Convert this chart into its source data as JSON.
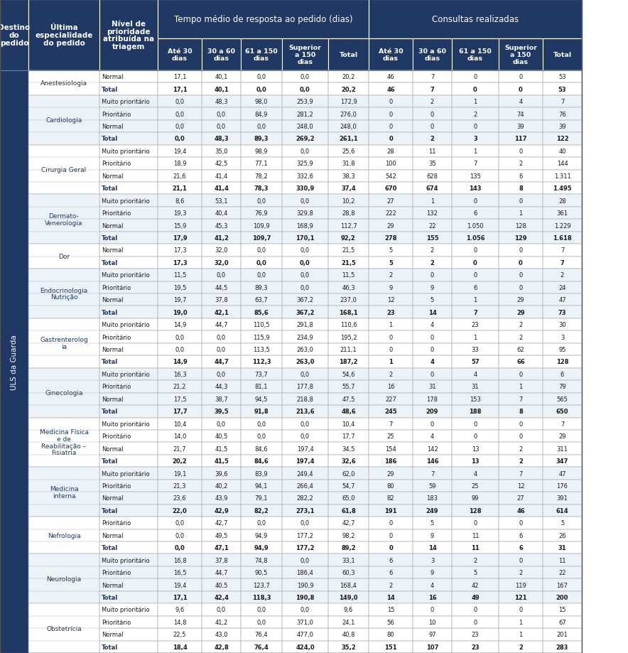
{
  "dark_blue": "#1F3864",
  "white": "#FFFFFF",
  "light_blue": "#D6E4F0",
  "mid_blue": "#2E5496",
  "col1_header": "Destino\ndo\npedido",
  "col2_header": "Última\nespecialidade\ndo pedido",
  "col3_header": "Nível de\nprioridade\natribuída na\ntriagem",
  "group1_header": "Tempo médio de resposta ao pedido (dias)",
  "group2_header": "Consultas realizadas",
  "sub_headers": [
    "Até 30\ndias",
    "30 a 60\ndias",
    "61 a 150\ndias",
    "Superior\na 150\ndias",
    "Total",
    "Até 30\ndias",
    "30 a 60\ndias",
    "61 a 150\ndias",
    "Superior\na 150\ndias",
    "Total"
  ],
  "entity": "ULS da Guarda",
  "specialty_groups": [
    {
      "name": "Anestesiologia",
      "rows": [
        0,
        1
      ]
    },
    {
      "name": "Cardiologia",
      "rows": [
        2,
        3,
        4,
        5
      ]
    },
    {
      "name": "Cirurgia Geral",
      "rows": [
        6,
        7,
        8,
        9
      ]
    },
    {
      "name": "Dermato-\nVenerologia",
      "rows": [
        10,
        11,
        12,
        13
      ]
    },
    {
      "name": "Dor",
      "rows": [
        14,
        15
      ]
    },
    {
      "name": "Endocrinologia\nNutrição",
      "rows": [
        16,
        17,
        18,
        19
      ]
    },
    {
      "name": "Gastrenterolog\nia",
      "rows": [
        20,
        21,
        22,
        23
      ]
    },
    {
      "name": "Ginecologia",
      "rows": [
        24,
        25,
        26,
        27
      ]
    },
    {
      "name": "Medicina Física\ne de\nReabilitação –\nFisiatria",
      "rows": [
        28,
        29,
        30,
        31
      ]
    },
    {
      "name": "Medicina\ninterna",
      "rows": [
        32,
        33,
        34,
        35
      ]
    },
    {
      "name": "Nefrologia",
      "rows": [
        36,
        37,
        38
      ]
    },
    {
      "name": "Neurologia",
      "rows": [
        39,
        40,
        41,
        42
      ]
    },
    {
      "name": "Obstetrícia",
      "rows": [
        43,
        44,
        45,
        46
      ]
    }
  ],
  "specialty_colors": {
    "Anestesiologia": "#FFFFFF",
    "Cardiologia": "#EBF3F9",
    "Cirurgia Geral": "#FFFFFF",
    "Dermato-\nVenerologia": "#EBF3F9",
    "Dor": "#FFFFFF",
    "Endocrinologia\nNutrição": "#EBF3F9",
    "Gastrenterolog\nia": "#FFFFFF",
    "Ginecologia": "#EBF3F9",
    "Medicina Física\ne de\nReabilitação –\nFisiatria": "#FFFFFF",
    "Medicina\ninterna": "#EBF3F9",
    "Nefrologia": "#FFFFFF",
    "Neurologia": "#EBF3F9",
    "Obstetrícia": "#FFFFFF"
  },
  "rows": [
    {
      "specialty": "Anestesiologia",
      "priority": "Normal",
      "bold": false,
      "data": [
        "17,1",
        "40,1",
        "0,0",
        "0,0",
        "20,2",
        "46",
        "7",
        "0",
        "0",
        "53"
      ]
    },
    {
      "specialty": "Anestesiologia",
      "priority": "Total",
      "bold": true,
      "data": [
        "17,1",
        "40,1",
        "0,0",
        "0,0",
        "20,2",
        "46",
        "7",
        "0",
        "0",
        "53"
      ]
    },
    {
      "specialty": "Cardiologia",
      "priority": "Muito prioritário",
      "bold": false,
      "data": [
        "0,0",
        "48,3",
        "98,0",
        "253,9",
        "172,9",
        "0",
        "2",
        "1",
        "4",
        "7"
      ]
    },
    {
      "specialty": "Cardiologia",
      "priority": "Prioritário",
      "bold": false,
      "data": [
        "0,0",
        "0,0",
        "84,9",
        "281,2",
        "276,0",
        "0",
        "0",
        "2",
        "74",
        "76"
      ]
    },
    {
      "specialty": "Cardiologia",
      "priority": "Normal",
      "bold": false,
      "data": [
        "0,0",
        "0,0",
        "0,0",
        "248,0",
        "248,0",
        "0",
        "0",
        "0",
        "39",
        "39"
      ]
    },
    {
      "specialty": "Cardiologia",
      "priority": "Total",
      "bold": true,
      "data": [
        "0,0",
        "48,3",
        "89,3",
        "269,2",
        "261,1",
        "0",
        "2",
        "3",
        "117",
        "122"
      ]
    },
    {
      "specialty": "Cirurgia Geral",
      "priority": "Muito prioritário",
      "bold": false,
      "data": [
        "19,4",
        "35,0",
        "98,9",
        "0,0",
        "25,6",
        "28",
        "11",
        "1",
        "0",
        "40"
      ]
    },
    {
      "specialty": "Cirurgia Geral",
      "priority": "Prioritário",
      "bold": false,
      "data": [
        "18,9",
        "42,5",
        "77,1",
        "325,9",
        "31,8",
        "100",
        "35",
        "7",
        "2",
        "144"
      ]
    },
    {
      "specialty": "Cirurgia Geral",
      "priority": "Normal",
      "bold": false,
      "data": [
        "21,6",
        "41,4",
        "78,2",
        "332,6",
        "38,3",
        "542",
        "628",
        "135",
        "6",
        "1.311"
      ]
    },
    {
      "specialty": "Cirurgia Geral",
      "priority": "Total",
      "bold": true,
      "data": [
        "21,1",
        "41,4",
        "78,3",
        "330,9",
        "37,4",
        "670",
        "674",
        "143",
        "8",
        "1.495"
      ]
    },
    {
      "specialty": "Dermato-\nVenerologia",
      "priority": "Muito prioritário",
      "bold": false,
      "data": [
        "8,6",
        "53,1",
        "0,0",
        "0,0",
        "10,2",
        "27",
        "1",
        "0",
        "0",
        "28"
      ]
    },
    {
      "specialty": "Dermato-\nVenerologia",
      "priority": "Prioritário",
      "bold": false,
      "data": [
        "19,3",
        "40,4",
        "76,9",
        "329,8",
        "28,8",
        "222",
        "132",
        "6",
        "1",
        "361"
      ]
    },
    {
      "specialty": "Dermato-\nVenerologia",
      "priority": "Normal",
      "bold": false,
      "data": [
        "15,9",
        "45,3",
        "109,9",
        "168,9",
        "112,7",
        "29",
        "22",
        "1.050",
        "128",
        "1.229"
      ]
    },
    {
      "specialty": "Dermato-\nVenerologia",
      "priority": "Total",
      "bold": true,
      "data": [
        "17,9",
        "41,2",
        "109,7",
        "170,1",
        "92,2",
        "278",
        "155",
        "1.056",
        "129",
        "1.618"
      ]
    },
    {
      "specialty": "Dor",
      "priority": "Normal",
      "bold": false,
      "data": [
        "17,3",
        "32,0",
        "0,0",
        "0,0",
        "21,5",
        "5",
        "2",
        "0",
        "0",
        "7"
      ]
    },
    {
      "specialty": "Dor",
      "priority": "Total",
      "bold": true,
      "data": [
        "17,3",
        "32,0",
        "0,0",
        "0,0",
        "21,5",
        "5",
        "2",
        "0",
        "0",
        "7"
      ]
    },
    {
      "specialty": "Endocrinologia\nNutrição",
      "priority": "Muito prioritário",
      "bold": false,
      "data": [
        "11,5",
        "0,0",
        "0,0",
        "0,0",
        "11,5",
        "2",
        "0",
        "0",
        "0",
        "2"
      ]
    },
    {
      "specialty": "Endocrinologia\nNutrição",
      "priority": "Prioritário",
      "bold": false,
      "data": [
        "19,5",
        "44,5",
        "89,3",
        "0,0",
        "46,3",
        "9",
        "9",
        "6",
        "0",
        "24"
      ]
    },
    {
      "specialty": "Endocrinologia\nNutrição",
      "priority": "Normal",
      "bold": false,
      "data": [
        "19,7",
        "37,8",
        "63,7",
        "367,2",
        "237,0",
        "12",
        "5",
        "1",
        "29",
        "47"
      ]
    },
    {
      "specialty": "Endocrinologia\nNutrição",
      "priority": "Total",
      "bold": true,
      "data": [
        "19,0",
        "42,1",
        "85,6",
        "367,2",
        "168,1",
        "23",
        "14",
        "7",
        "29",
        "73"
      ]
    },
    {
      "specialty": "Gastrenterolog\nia",
      "priority": "Muito prioritário",
      "bold": false,
      "data": [
        "14,9",
        "44,7",
        "110,5",
        "291,8",
        "110,6",
        "1",
        "4",
        "23",
        "2",
        "30"
      ]
    },
    {
      "specialty": "Gastrenterolog\nia",
      "priority": "Prioritário",
      "bold": false,
      "data": [
        "0,0",
        "0,0",
        "115,9",
        "234,9",
        "195,2",
        "0",
        "0",
        "1",
        "2",
        "3"
      ]
    },
    {
      "specialty": "Gastrenterolog\nia",
      "priority": "Normal",
      "bold": false,
      "data": [
        "0,0",
        "0,0",
        "113,5",
        "263,0",
        "211,1",
        "0",
        "0",
        "33",
        "62",
        "95"
      ]
    },
    {
      "specialty": "Gastrenterolog\nia",
      "priority": "Total",
      "bold": true,
      "data": [
        "14,9",
        "44,7",
        "112,3",
        "263,0",
        "187,2",
        "1",
        "4",
        "57",
        "66",
        "128"
      ]
    },
    {
      "specialty": "Ginecologia",
      "priority": "Muito prioritário",
      "bold": false,
      "data": [
        "16,3",
        "0,0",
        "73,7",
        "0,0",
        "54,6",
        "2",
        "0",
        "4",
        "0",
        "6"
      ]
    },
    {
      "specialty": "Ginecologia",
      "priority": "Prioritário",
      "bold": false,
      "data": [
        "21,2",
        "44,3",
        "81,1",
        "177,8",
        "55,7",
        "16",
        "31",
        "31",
        "1",
        "79"
      ]
    },
    {
      "specialty": "Ginecologia",
      "priority": "Normal",
      "bold": false,
      "data": [
        "17,5",
        "38,7",
        "94,5",
        "218,8",
        "47,5",
        "227",
        "178",
        "153",
        "7",
        "565"
      ]
    },
    {
      "specialty": "Ginecologia",
      "priority": "Total",
      "bold": true,
      "data": [
        "17,7",
        "39,5",
        "91,8",
        "213,6",
        "48,6",
        "245",
        "209",
        "188",
        "8",
        "650"
      ]
    },
    {
      "specialty": "Medicina Física\ne de\nReabilitação –\nFisiatria",
      "priority": "Muito prioritário",
      "bold": false,
      "data": [
        "10,4",
        "0,0",
        "0,0",
        "0,0",
        "10,4",
        "7",
        "0",
        "0",
        "0",
        "7"
      ]
    },
    {
      "specialty": "Medicina Física\ne de\nReabilitação –\nFisiatria",
      "priority": "Prioritário",
      "bold": false,
      "data": [
        "14,0",
        "40,5",
        "0,0",
        "0,0",
        "17,7",
        "25",
        "4",
        "0",
        "0",
        "29"
      ]
    },
    {
      "specialty": "Medicina Física\ne de\nReabilitação –\nFisiatria",
      "priority": "Normal",
      "bold": false,
      "data": [
        "21,7",
        "41,5",
        "84,6",
        "197,4",
        "34,5",
        "154",
        "142",
        "13",
        "2",
        "311"
      ]
    },
    {
      "specialty": "Medicina Física\ne de\nReabilitação –\nFisiatria",
      "priority": "Total",
      "bold": true,
      "data": [
        "20,2",
        "41,5",
        "84,6",
        "197,4",
        "32,6",
        "186",
        "146",
        "13",
        "2",
        "347"
      ]
    },
    {
      "specialty": "Medicina\ninterna",
      "priority": "Muito prioritário",
      "bold": false,
      "data": [
        "19,1",
        "39,6",
        "83,9",
        "249,4",
        "62,0",
        "29",
        "7",
        "4",
        "7",
        "47"
      ]
    },
    {
      "specialty": "Medicina\ninterna",
      "priority": "Prioritário",
      "bold": false,
      "data": [
        "21,3",
        "40,2",
        "94,1",
        "266,4",
        "54,7",
        "80",
        "59",
        "25",
        "12",
        "176"
      ]
    },
    {
      "specialty": "Medicina\ninterna",
      "priority": "Normal",
      "bold": false,
      "data": [
        "23,6",
        "43,9",
        "79,1",
        "282,2",
        "65,0",
        "82",
        "183",
        "99",
        "27",
        "391"
      ]
    },
    {
      "specialty": "Medicina\ninterna",
      "priority": "Total",
      "bold": true,
      "data": [
        "22,0",
        "42,9",
        "82,2",
        "273,1",
        "61,8",
        "191",
        "249",
        "128",
        "46",
        "614"
      ]
    },
    {
      "specialty": "Nefrologia",
      "priority": "Prioritário",
      "bold": false,
      "data": [
        "0,0",
        "42,7",
        "0,0",
        "0,0",
        "42,7",
        "0",
        "5",
        "0",
        "0",
        "5"
      ]
    },
    {
      "specialty": "Nefrologia",
      "priority": "Normal",
      "bold": false,
      "data": [
        "0,0",
        "49,5",
        "94,9",
        "177,2",
        "98,2",
        "0",
        "9",
        "11",
        "6",
        "26"
      ]
    },
    {
      "specialty": "Nefrologia",
      "priority": "Total",
      "bold": true,
      "data": [
        "0,0",
        "47,1",
        "94,9",
        "177,2",
        "89,2",
        "0",
        "14",
        "11",
        "6",
        "31"
      ]
    },
    {
      "specialty": "Neurologia",
      "priority": "Muito prioritário",
      "bold": false,
      "data": [
        "16,8",
        "37,8",
        "74,8",
        "0,0",
        "33,1",
        "6",
        "3",
        "2",
        "0",
        "11"
      ]
    },
    {
      "specialty": "Neurologia",
      "priority": "Prioritário",
      "bold": false,
      "data": [
        "16,5",
        "44,7",
        "90,5",
        "186,4",
        "60,3",
        "6",
        "9",
        "5",
        "2",
        "22"
      ]
    },
    {
      "specialty": "Neurologia",
      "priority": "Normal",
      "bold": false,
      "data": [
        "19,4",
        "40,5",
        "123,7",
        "190,9",
        "168,4",
        "2",
        "4",
        "42",
        "119",
        "167"
      ]
    },
    {
      "specialty": "Neurologia",
      "priority": "Total",
      "bold": true,
      "data": [
        "17,1",
        "42,4",
        "118,3",
        "190,8",
        "149,0",
        "14",
        "16",
        "49",
        "121",
        "200"
      ]
    },
    {
      "specialty": "Obstetrícia",
      "priority": "Muito prioritário",
      "bold": false,
      "data": [
        "9,6",
        "0,0",
        "0,0",
        "0,0",
        "9,6",
        "15",
        "0",
        "0",
        "0",
        "15"
      ]
    },
    {
      "specialty": "Obstetrícia",
      "priority": "Prioritário",
      "bold": false,
      "data": [
        "14,8",
        "41,2",
        "0,0",
        "371,0",
        "24,1",
        "56",
        "10",
        "0",
        "1",
        "67"
      ]
    },
    {
      "specialty": "Obstetrícia",
      "priority": "Normal",
      "bold": false,
      "data": [
        "22,5",
        "43,0",
        "76,4",
        "477,0",
        "40,8",
        "80",
        "97",
        "23",
        "1",
        "201"
      ]
    },
    {
      "specialty": "Obstetrícia",
      "priority": "Total",
      "bold": true,
      "data": [
        "18,4",
        "42,8",
        "76,4",
        "424,0",
        "35,2",
        "151",
        "107",
        "23",
        "2",
        "283"
      ]
    }
  ]
}
